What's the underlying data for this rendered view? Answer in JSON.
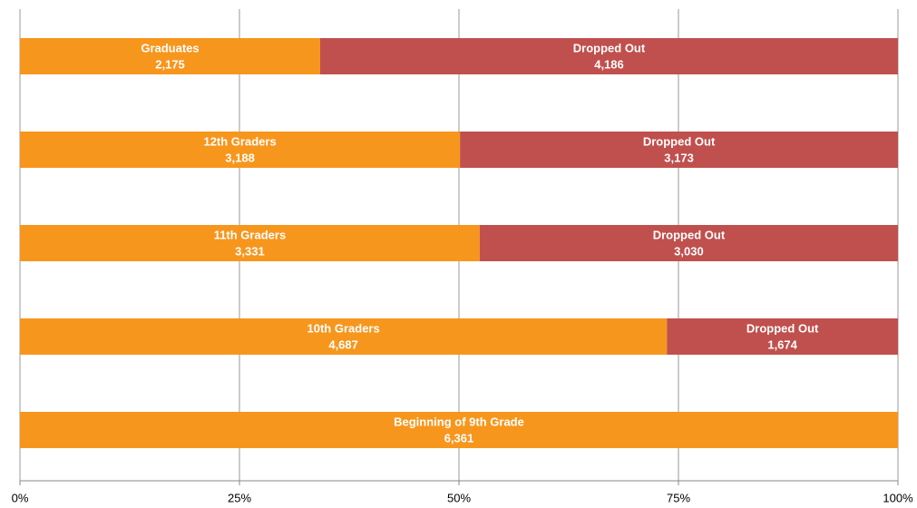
{
  "chart_data": {
    "type": "bar",
    "orientation": "horizontal",
    "stacking": "percent",
    "categories": [
      "Graduates",
      "12th Graders",
      "11th Graders",
      "10th Graders",
      "Beginning of 9th Grade"
    ],
    "series": [
      {
        "color": "#f7961d",
        "values": [
          2175,
          3188,
          3331,
          4687,
          6361
        ],
        "value_labels": [
          "2,175",
          "3,188",
          "3,331",
          "4,687",
          "6,361"
        ]
      },
      {
        "name": "Dropped Out",
        "color": "#c0504d",
        "values": [
          4186,
          3173,
          3030,
          1674,
          null
        ],
        "value_labels": [
          "4,186",
          "3,173",
          "3,030",
          "1,674",
          null
        ]
      }
    ],
    "xlim": [
      0,
      100
    ],
    "xticks": [
      {
        "value": 0,
        "label": "0%"
      },
      {
        "value": 25,
        "label": "25%"
      },
      {
        "value": 50,
        "label": "50%"
      },
      {
        "value": 75,
        "label": "75%"
      },
      {
        "value": 100,
        "label": "100%"
      }
    ],
    "grid": true
  }
}
